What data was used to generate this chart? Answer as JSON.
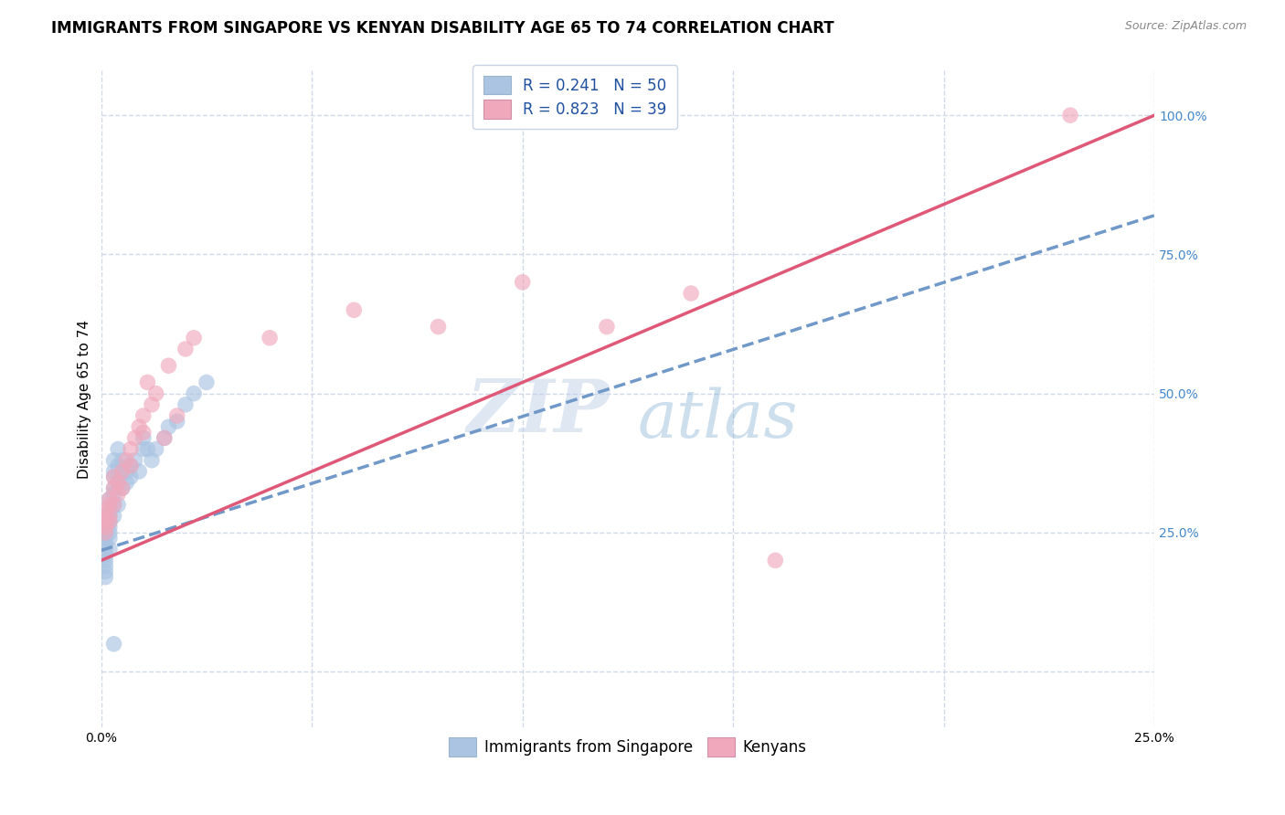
{
  "title": "IMMIGRANTS FROM SINGAPORE VS KENYAN DISABILITY AGE 65 TO 74 CORRELATION CHART",
  "source": "Source: ZipAtlas.com",
  "xlabel": "",
  "ylabel": "Disability Age 65 to 74",
  "watermark_zip": "ZIP",
  "watermark_atlas": "atlas",
  "xlim": [
    0.0,
    0.25
  ],
  "ylim": [
    -0.1,
    1.08
  ],
  "xticks": [
    0.0,
    0.05,
    0.1,
    0.15,
    0.2,
    0.25
  ],
  "yticks": [
    0.0,
    0.25,
    0.5,
    0.75,
    1.0
  ],
  "xticklabels": [
    "0.0%",
    "",
    "",
    "",
    "",
    "25.0%"
  ],
  "left_yticklabels": [
    "",
    "",
    "",
    "",
    ""
  ],
  "right_yticklabels": [
    "",
    "25.0%",
    "50.0%",
    "75.0%",
    "100.0%"
  ],
  "blue_R": 0.241,
  "blue_N": 50,
  "pink_R": 0.823,
  "pink_N": 39,
  "blue_color": "#aac4e2",
  "pink_color": "#f0a8bc",
  "blue_line_color": "#7098c8",
  "pink_line_color": "#e05878",
  "blue_scatter_x": [
    0.001,
    0.001,
    0.001,
    0.001,
    0.001,
    0.001,
    0.001,
    0.001,
    0.001,
    0.001,
    0.002,
    0.002,
    0.002,
    0.002,
    0.002,
    0.002,
    0.002,
    0.002,
    0.003,
    0.003,
    0.003,
    0.003,
    0.003,
    0.003,
    0.003,
    0.004,
    0.004,
    0.004,
    0.004,
    0.005,
    0.005,
    0.005,
    0.006,
    0.006,
    0.007,
    0.007,
    0.008,
    0.009,
    0.01,
    0.01,
    0.011,
    0.012,
    0.013,
    0.015,
    0.016,
    0.018,
    0.02,
    0.022,
    0.025,
    0.003
  ],
  "blue_scatter_y": [
    0.22,
    0.23,
    0.24,
    0.25,
    0.26,
    0.2,
    0.19,
    0.18,
    0.21,
    0.17,
    0.28,
    0.27,
    0.29,
    0.26,
    0.31,
    0.24,
    0.22,
    0.25,
    0.35,
    0.38,
    0.32,
    0.3,
    0.28,
    0.33,
    0.36,
    0.4,
    0.37,
    0.34,
    0.3,
    0.38,
    0.36,
    0.33,
    0.36,
    0.34,
    0.37,
    0.35,
    0.38,
    0.36,
    0.42,
    0.4,
    0.4,
    0.38,
    0.4,
    0.42,
    0.44,
    0.45,
    0.48,
    0.5,
    0.52,
    0.05
  ],
  "pink_scatter_x": [
    0.001,
    0.001,
    0.001,
    0.001,
    0.001,
    0.002,
    0.002,
    0.002,
    0.002,
    0.003,
    0.003,
    0.003,
    0.004,
    0.004,
    0.005,
    0.005,
    0.006,
    0.007,
    0.007,
    0.008,
    0.009,
    0.01,
    0.01,
    0.011,
    0.012,
    0.013,
    0.015,
    0.016,
    0.018,
    0.02,
    0.022,
    0.04,
    0.06,
    0.08,
    0.1,
    0.12,
    0.14,
    0.16,
    0.23
  ],
  "pink_scatter_y": [
    0.26,
    0.27,
    0.28,
    0.29,
    0.25,
    0.3,
    0.28,
    0.31,
    0.27,
    0.33,
    0.35,
    0.3,
    0.34,
    0.32,
    0.36,
    0.33,
    0.38,
    0.37,
    0.4,
    0.42,
    0.44,
    0.43,
    0.46,
    0.52,
    0.48,
    0.5,
    0.42,
    0.55,
    0.46,
    0.58,
    0.6,
    0.6,
    0.65,
    0.62,
    0.7,
    0.62,
    0.68,
    0.2,
    1.0
  ],
  "blue_trend_x": [
    0.0,
    0.25
  ],
  "blue_trend_y": [
    0.218,
    0.82
  ],
  "pink_trend_x": [
    0.0,
    0.25
  ],
  "pink_trend_y": [
    0.2,
    1.0
  ],
  "background_color": "#ffffff",
  "grid_color": "#d0d8e8",
  "title_fontsize": 12,
  "axis_label_fontsize": 11,
  "tick_fontsize": 10,
  "legend_fontsize": 12,
  "right_tick_color": "#4488cc"
}
